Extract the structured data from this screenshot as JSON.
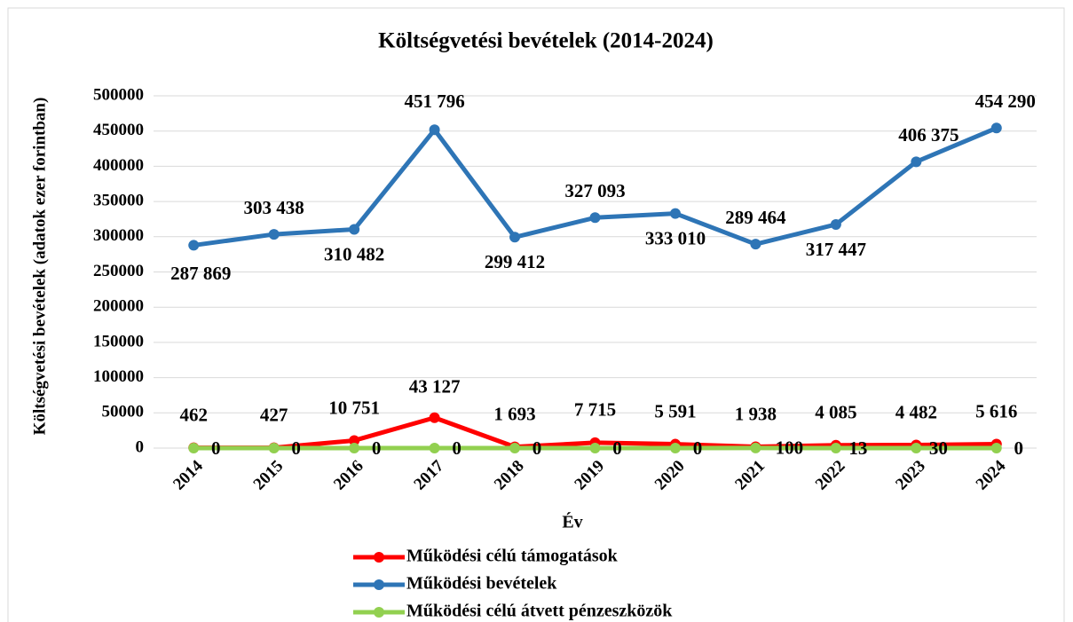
{
  "chart_data": {
    "type": "line",
    "title": "Költségvetési bevételek (2014-2024)",
    "x_label": "Év",
    "y_label": "Költségvetési bevételek (adatok ezer forintban)",
    "categories": [
      "2014",
      "2015",
      "2016",
      "2017",
      "2018",
      "2019",
      "2020",
      "2021",
      "2022",
      "2023",
      "2024"
    ],
    "series": [
      {
        "name": "Működési célú támogatások",
        "color": "#ff0000",
        "values": [
          462,
          427,
          10751,
          43127,
          1693,
          7715,
          5591,
          1938,
          4085,
          4482,
          5616
        ],
        "value_labels": [
          "462",
          "427",
          "10 751",
          "43 127",
          "1 693",
          "7 715",
          "5 591",
          "1 938",
          "4 085",
          "4 482",
          "5 616"
        ]
      },
      {
        "name": "Működési bevételek",
        "color": "#2e75b6",
        "values": [
          287869,
          303438,
          310482,
          451796,
          299412,
          327093,
          333010,
          289464,
          317447,
          406375,
          454290
        ],
        "value_labels": [
          "287 869",
          "303 438",
          "310 482",
          "451 796",
          "299 412",
          "327 093",
          "333 010",
          "289 464",
          "317 447",
          "406 375",
          "454 290"
        ]
      },
      {
        "name": "Működési célú átvett pénzeszközök",
        "color": "#92d050",
        "values": [
          0,
          0,
          0,
          0,
          0,
          0,
          0,
          100,
          13,
          30,
          0
        ]
      }
    ],
    "ylim": [
      0,
      500000
    ],
    "yticks": [
      0,
      50000,
      100000,
      150000,
      200000,
      250000,
      300000,
      350000,
      400000,
      450000,
      500000
    ],
    "grid": true,
    "legend": "bottom"
  }
}
